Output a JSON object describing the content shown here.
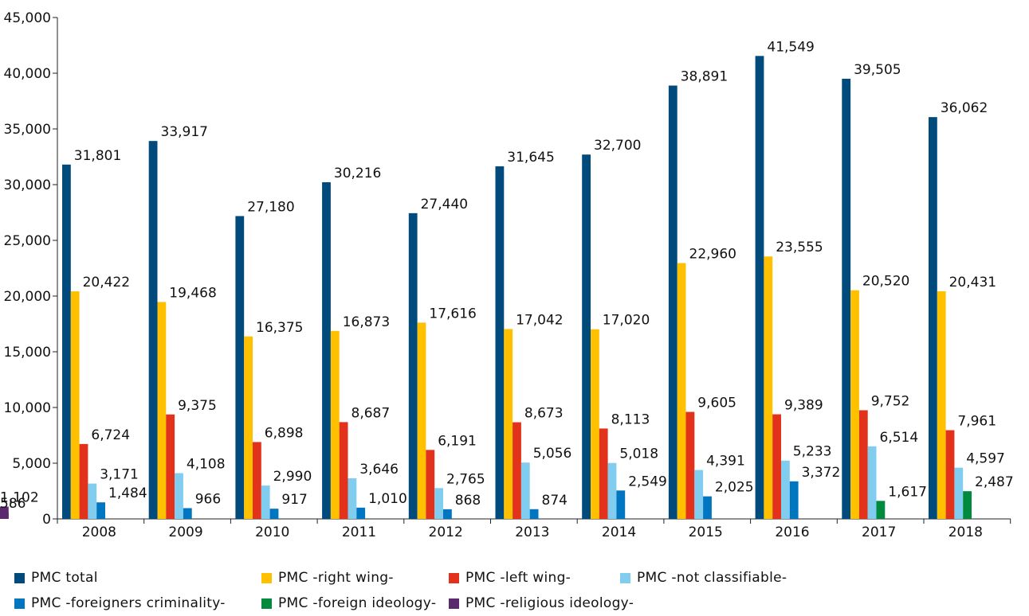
{
  "chart_data": {
    "type": "bar",
    "categories": [
      "2008",
      "2009",
      "2010",
      "2011",
      "2012",
      "2013",
      "2014",
      "2015",
      "2016",
      "2017",
      "2018"
    ],
    "ylim": [
      0,
      45000
    ],
    "yticks": [
      0,
      5000,
      10000,
      15000,
      20000,
      25000,
      30000,
      35000,
      40000,
      45000
    ],
    "ytick_labels": [
      "0",
      "5,000",
      "10,000",
      "15,000",
      "20,000",
      "25,000",
      "30,000",
      "35,000",
      "40,000",
      "45,000"
    ],
    "grid": false,
    "legend_position": "bottom",
    "series": [
      {
        "name": "PMC total",
        "color": "#004b7c",
        "values": [
          31801,
          33917,
          27180,
          30216,
          27440,
          31645,
          32700,
          38891,
          41549,
          39505,
          36062
        ],
        "labels": [
          "31,801",
          "33,917",
          "27,180",
          "30,216",
          "27,440",
          "31,645",
          "32,700",
          "38,891",
          "41,549",
          "39,505",
          "36,062"
        ]
      },
      {
        "name": "PMC -right wing-",
        "color": "#ffc000",
        "values": [
          20422,
          19468,
          16375,
          16873,
          17616,
          17042,
          17020,
          22960,
          23555,
          20520,
          20431
        ],
        "labels": [
          "20,422",
          "19,468",
          "16,375",
          "16,873",
          "17,616",
          "17,042",
          "17,020",
          "22,960",
          "23,555",
          "20,520",
          "20,431"
        ]
      },
      {
        "name": "PMC -left wing-",
        "color": "#e2321c",
        "values": [
          6724,
          9375,
          6898,
          8687,
          6191,
          8673,
          8113,
          9605,
          9389,
          9752,
          7961
        ],
        "labels": [
          "6,724",
          "9,375",
          "6,898",
          "8,687",
          "6,191",
          "8,673",
          "8,113",
          "9,605",
          "9,389",
          "9,752",
          "7,961"
        ]
      },
      {
        "name": "PMC -not classifiable-",
        "color": "#80cdf0",
        "values": [
          3171,
          4108,
          2990,
          3646,
          2765,
          5056,
          5018,
          4391,
          5233,
          6514,
          4597
        ],
        "labels": [
          "3,171",
          "4,108",
          "2,990",
          "3,646",
          "2,765",
          "5,056",
          "5,018",
          "4,391",
          "5,233",
          "6,514",
          "4,597"
        ]
      },
      {
        "name": "PMC -foreigners criminality-",
        "color": "#0076c0",
        "values": [
          1484,
          966,
          917,
          1010,
          868,
          874,
          2549,
          2025,
          3372,
          null,
          null
        ],
        "labels": [
          "1,484",
          "966",
          "917",
          "1,010",
          "868",
          "874",
          "2,549",
          "2,025",
          "3,372",
          "",
          ""
        ]
      },
      {
        "name": "PMC -foreign ideology-",
        "color": "#008a3e",
        "values": [
          null,
          null,
          null,
          null,
          null,
          null,
          null,
          null,
          null,
          1617,
          2487
        ],
        "labels": [
          "",
          "",
          "",
          "",
          "",
          "",
          "",
          "",
          "",
          "1,617",
          "2,487"
        ]
      },
      {
        "name": "PMC -religious ideology-",
        "color": "#5b2a6e",
        "values": [
          null,
          null,
          null,
          null,
          null,
          null,
          null,
          null,
          null,
          1102,
          586
        ],
        "labels": [
          "",
          "",
          "",
          "",
          "",
          "",
          "",
          "",
          "",
          "1,102",
          "586"
        ]
      }
    ]
  }
}
